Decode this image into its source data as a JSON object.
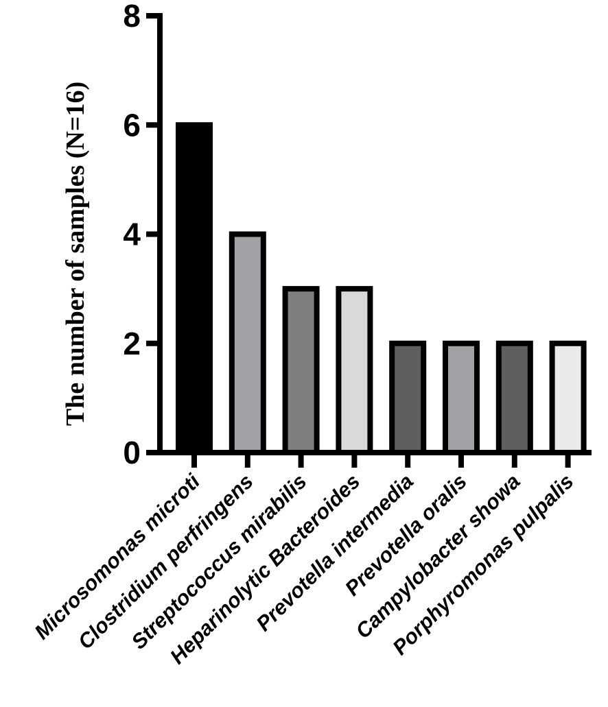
{
  "chart_data": {
    "type": "bar",
    "title": "",
    "xlabel": "",
    "ylabel": "The number of samples (N=16)",
    "ylim": [
      0,
      8
    ],
    "yticks": [
      0,
      2,
      4,
      6,
      8
    ],
    "grid": false,
    "categories": [
      "Microsomonas microti",
      "Clostridium perfringens",
      "Streptococcus mirabilis",
      "Heparinolytic Bacteroides",
      "Prevotella intermedia",
      "Prevotella oralis",
      "Campylobacter showa",
      "Porphyromonas pulpalis"
    ],
    "values": [
      6,
      4,
      3,
      3,
      2,
      2,
      2,
      2
    ],
    "bar_colors": [
      "#000000",
      "#a2a2a6",
      "#7e7e7e",
      "#d9d9d9",
      "#5f5f5f",
      "#a2a2a6",
      "#5f5f5f",
      "#eaeaea"
    ],
    "axis_color": "#000000"
  }
}
